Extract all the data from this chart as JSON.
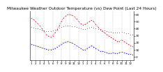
{
  "title": "Milwaukee Weather Outdoor Temperature (vs) Dew Point (Last 24 Hours)",
  "title_fontsize": 4.2,
  "background_color": "#ffffff",
  "temp_color": "#dd0000",
  "dew_color": "#0000cc",
  "indoor_color": "#000000",
  "ylim": [
    -5,
    65
  ],
  "yticks": [
    0,
    10,
    20,
    30,
    40,
    50,
    60
  ],
  "ytick_fontsize": 3.2,
  "xtick_fontsize": 3.0,
  "num_points": 48,
  "x_labels": [
    "1",
    "",
    "2",
    "",
    "3",
    "",
    "4",
    "",
    "5",
    "",
    "6",
    "",
    "7",
    "",
    "8",
    "",
    "9",
    "",
    "10",
    "",
    "11",
    "",
    "12",
    "",
    "1",
    "",
    "2",
    "",
    "3",
    "",
    "4",
    "",
    "5",
    "",
    "6",
    "",
    "7",
    "",
    "8",
    "",
    "9",
    "",
    "10",
    "",
    "11",
    "",
    "12",
    ""
  ],
  "vline_positions": [
    2,
    6,
    10,
    14,
    18,
    22,
    26,
    30,
    34,
    38,
    42,
    46
  ],
  "outdoor_temp": [
    55,
    53,
    50,
    47,
    44,
    40,
    36,
    32,
    30,
    28,
    30,
    34,
    38,
    44,
    50,
    55,
    58,
    60,
    60,
    59,
    57,
    54,
    50,
    47,
    45,
    46,
    48,
    50,
    52,
    50,
    46,
    42,
    39,
    36,
    34,
    32,
    30,
    28,
    26,
    24,
    22,
    22,
    24,
    22,
    20,
    18,
    16,
    15
  ],
  "dew_point": [
    18,
    17,
    16,
    15,
    14,
    13,
    12,
    11,
    10,
    10,
    11,
    12,
    14,
    16,
    18,
    20,
    21,
    22,
    21,
    20,
    18,
    16,
    14,
    12,
    10,
    10,
    12,
    14,
    16,
    14,
    12,
    10,
    8,
    8,
    7,
    6,
    5,
    5,
    6,
    5,
    5,
    6,
    7,
    6,
    5,
    4,
    4,
    3
  ],
  "indoor_temp": [
    42,
    41,
    40,
    40,
    39,
    38,
    37,
    36,
    36,
    36,
    37,
    38,
    39,
    41,
    42,
    43,
    44,
    44,
    44,
    43,
    43,
    42,
    41,
    40,
    39,
    39,
    40,
    41,
    42,
    41,
    40,
    39,
    38,
    37,
    37,
    36,
    35,
    35,
    34,
    34,
    34,
    34,
    35,
    34,
    33,
    33,
    32,
    32
  ]
}
